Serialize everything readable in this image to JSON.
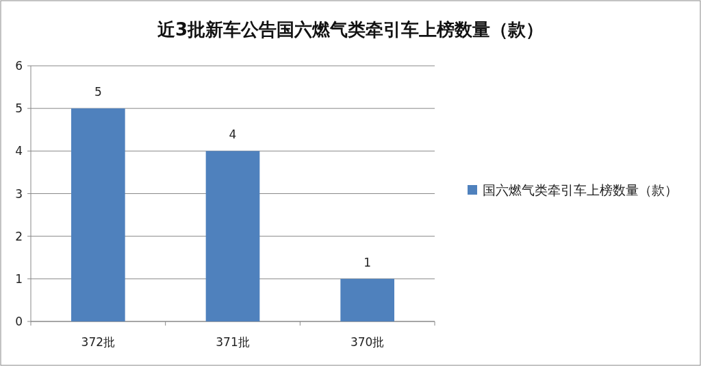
{
  "chart_data": {
    "type": "bar",
    "title": "近3批新车公告国六燃气类牵引车上榜数量（款）",
    "categories": [
      "372批",
      "371批",
      "370批"
    ],
    "series": [
      {
        "name": "国六燃气类牵引车上榜数量（款）",
        "color": "#4f81bd",
        "values": [
          5,
          4,
          1
        ]
      }
    ],
    "ylim": [
      0,
      6
    ],
    "yticks": [
      0,
      1,
      2,
      3,
      4,
      5,
      6
    ],
    "grid": "y",
    "legend": "right",
    "data_labels": true
  }
}
